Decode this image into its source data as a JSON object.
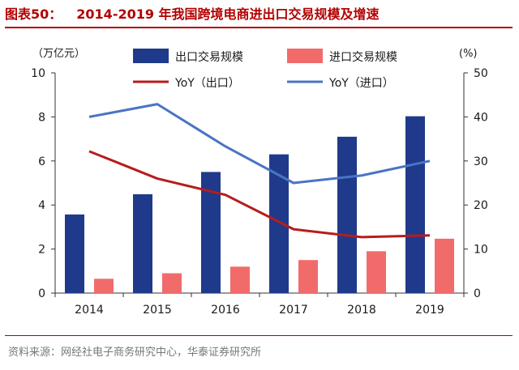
{
  "figure": {
    "label": "图表50：",
    "title": "2014-2019 年我国跨境电商进出口交易规模及增速",
    "source": "资料来源：网经社电子商务研究中心，华泰证券研究所"
  },
  "chart_data": {
    "type": "bar",
    "categories": [
      "2014",
      "2015",
      "2016",
      "2017",
      "2018",
      "2019"
    ],
    "series": [
      {
        "name": "出口交易规模",
        "kind": "bar",
        "axis": "left",
        "color": "#1f3a8a",
        "values": [
          3.57,
          4.49,
          5.5,
          6.3,
          7.1,
          8.03
        ]
      },
      {
        "name": "进口交易规模",
        "kind": "bar",
        "axis": "left",
        "color": "#f26b6b",
        "values": [
          0.65,
          0.9,
          1.2,
          1.5,
          1.9,
          2.47
        ]
      },
      {
        "name": "YoY（出口）",
        "kind": "line",
        "axis": "right",
        "color": "#b71c1c",
        "values": [
          32.2,
          26.0,
          22.3,
          14.5,
          12.7,
          13.1
        ]
      },
      {
        "name": "YoY（进口）",
        "kind": "line",
        "axis": "right",
        "color": "#4a74c4",
        "values": [
          40.0,
          42.9,
          33.3,
          25.0,
          26.7,
          30.0
        ]
      }
    ],
    "left_unit": "（万亿元）",
    "right_unit": "(%)",
    "ylim": [
      0,
      10
    ],
    "y_ticks": [
      "0",
      "2",
      "4",
      "6",
      "8",
      "10"
    ],
    "y2lim": [
      0,
      50
    ],
    "y2_ticks": [
      "0",
      "10",
      "20",
      "30",
      "40",
      "50"
    ],
    "grid": false,
    "legend_position": "top"
  }
}
